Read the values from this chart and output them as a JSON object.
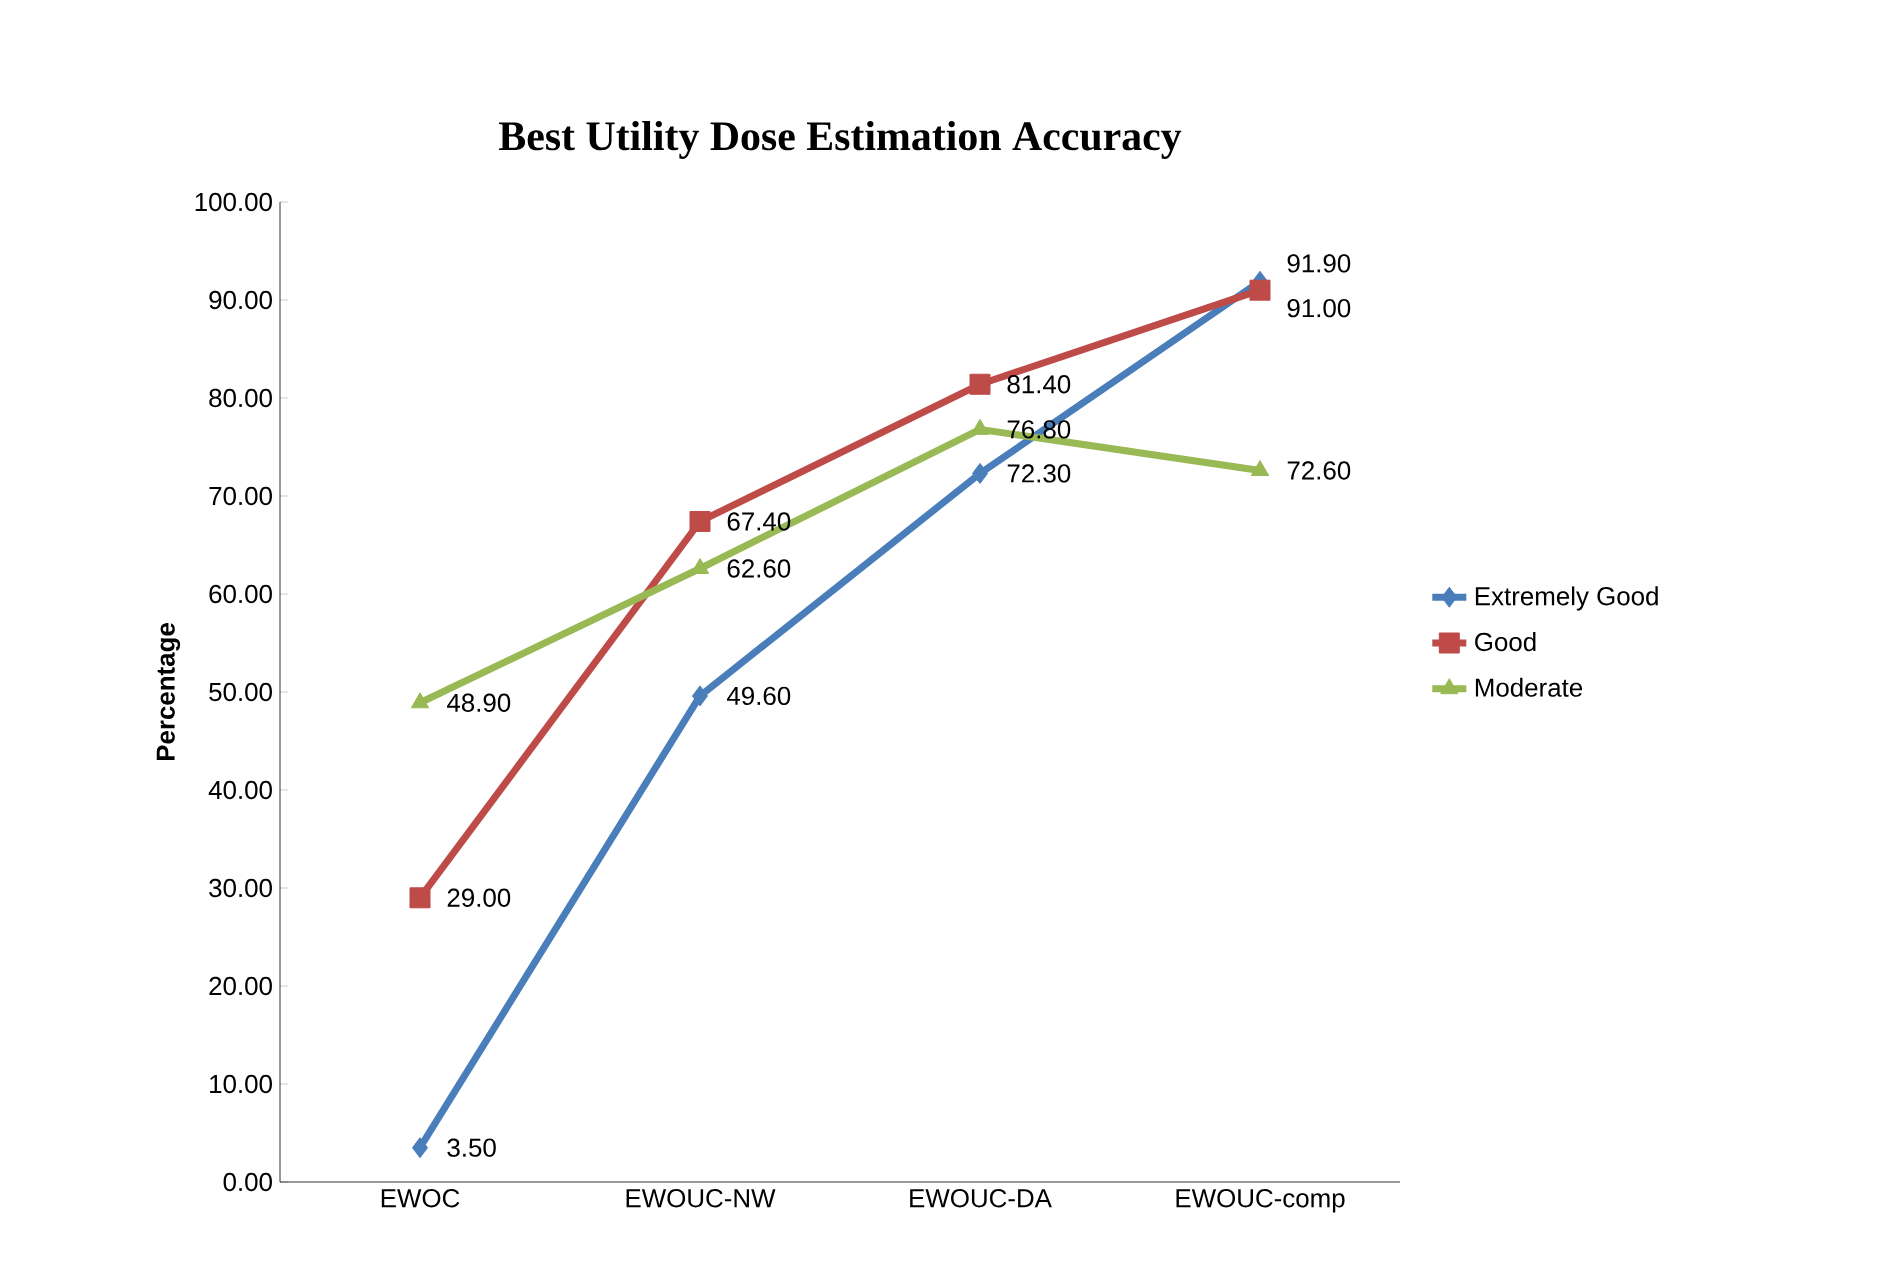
{
  "chart_data": {
    "type": "line",
    "title": "Best Utility Dose Estimation Accuracy",
    "ylabel": "Percentage",
    "categories": [
      "EWOC",
      "EWOUC-NW",
      "EWOUC-DA",
      "EWOUC-comp"
    ],
    "series": [
      {
        "name": "Extremely Good",
        "color": "#4a7ebb",
        "marker": "diamond",
        "values": [
          3.5,
          49.6,
          72.3,
          91.9
        ],
        "value_labels": [
          "3.50",
          "49.60",
          "72.30",
          "91.90"
        ]
      },
      {
        "name": "Good",
        "color": "#be4b48",
        "marker": "square",
        "values": [
          29.0,
          67.4,
          81.4,
          91.0
        ],
        "value_labels": [
          "29.00",
          "67.40",
          "81.40",
          "91.00"
        ]
      },
      {
        "name": "Moderate",
        "color": "#98b954",
        "marker": "triangle",
        "values": [
          48.9,
          62.6,
          76.8,
          72.6
        ],
        "value_labels": [
          "48.90",
          "62.60",
          "76.80",
          "72.60"
        ]
      }
    ],
    "ylim": [
      0,
      100
    ],
    "yticks": [
      {
        "value": 0,
        "label": "0.00"
      },
      {
        "value": 10,
        "label": "10.00"
      },
      {
        "value": 20,
        "label": "20.00"
      },
      {
        "value": 30,
        "label": "30.00"
      },
      {
        "value": 40,
        "label": "40.00"
      },
      {
        "value": 50,
        "label": "50.00"
      },
      {
        "value": 60,
        "label": "60.00"
      },
      {
        "value": 70,
        "label": "70.00"
      },
      {
        "value": 80,
        "label": "80.00"
      },
      {
        "value": 90,
        "label": "90.00"
      },
      {
        "value": 100,
        "label": "100.00"
      }
    ],
    "legend": "right",
    "grid": false
  }
}
